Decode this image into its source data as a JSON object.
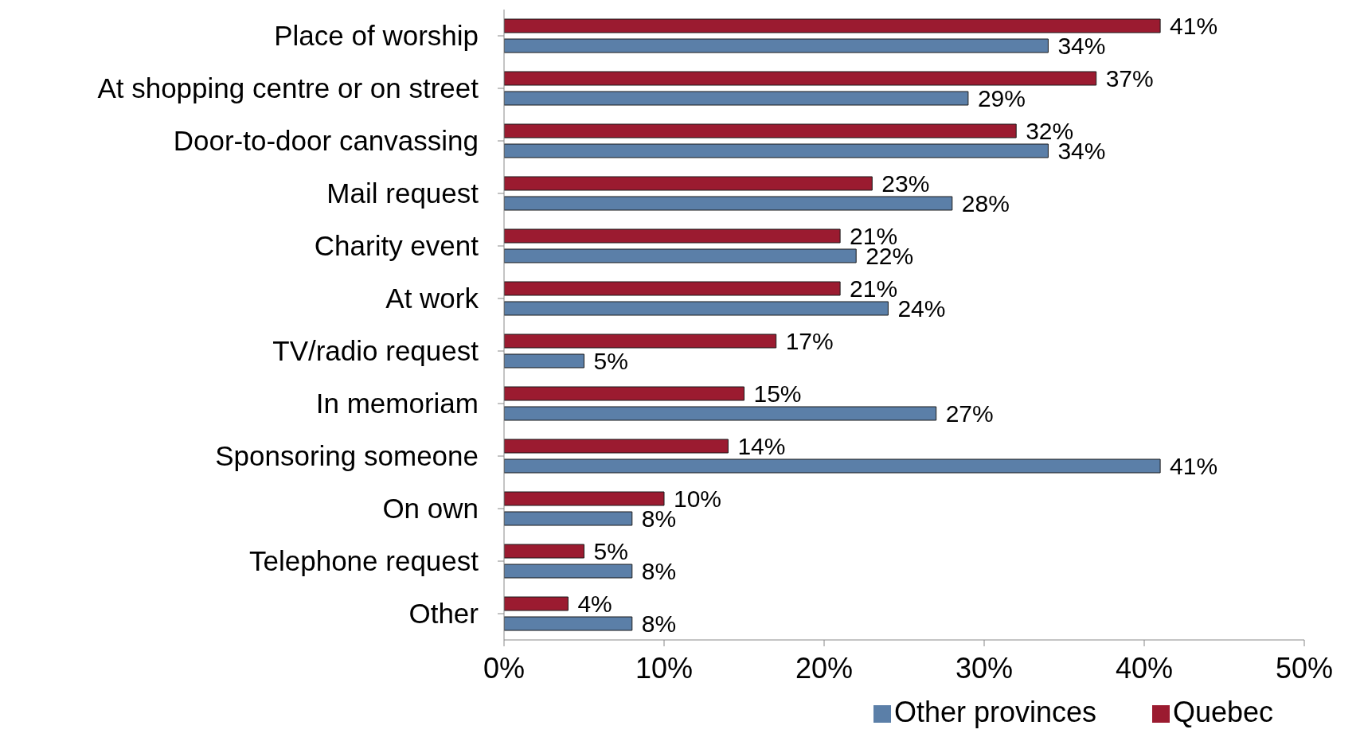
{
  "chart_data": {
    "type": "bar",
    "orientation": "horizontal",
    "categories": [
      "Place of worship",
      "At shopping centre or on street",
      "Door-to-door canvassing",
      "Mail request",
      "Charity event",
      "At work",
      "TV/radio request",
      "In memoriam",
      "Sponsoring someone",
      "On own",
      "Telephone request",
      "Other"
    ],
    "series": [
      {
        "name": "Quebec",
        "color": "#9b1b30",
        "values": [
          41,
          37,
          32,
          23,
          21,
          21,
          17,
          15,
          14,
          10,
          5,
          4
        ],
        "value_labels": [
          "41%",
          "37%",
          "32%",
          "23%",
          "21%",
          "21%",
          "17%",
          "15%",
          "14%",
          "10%",
          "5%",
          "4%"
        ]
      },
      {
        "name": "Other provinces",
        "color": "#5b7fa8",
        "values": [
          34,
          29,
          34,
          28,
          22,
          24,
          5,
          27,
          41,
          8,
          8,
          8
        ],
        "value_labels": [
          "34%",
          "29%",
          "34%",
          "28%",
          "22%",
          "24%",
          "5%",
          "27%",
          "41%",
          "8%",
          "8%",
          "8%"
        ]
      }
    ],
    "xlim": [
      0,
      50
    ],
    "xticks": [
      {
        "value": 0,
        "label": "0%"
      },
      {
        "value": 10,
        "label": "10%"
      },
      {
        "value": 20,
        "label": "20%"
      },
      {
        "value": 30,
        "label": "30%"
      },
      {
        "value": 40,
        "label": "40%"
      },
      {
        "value": 50,
        "label": "50%"
      }
    ],
    "grid": false,
    "legend": "bottom"
  }
}
